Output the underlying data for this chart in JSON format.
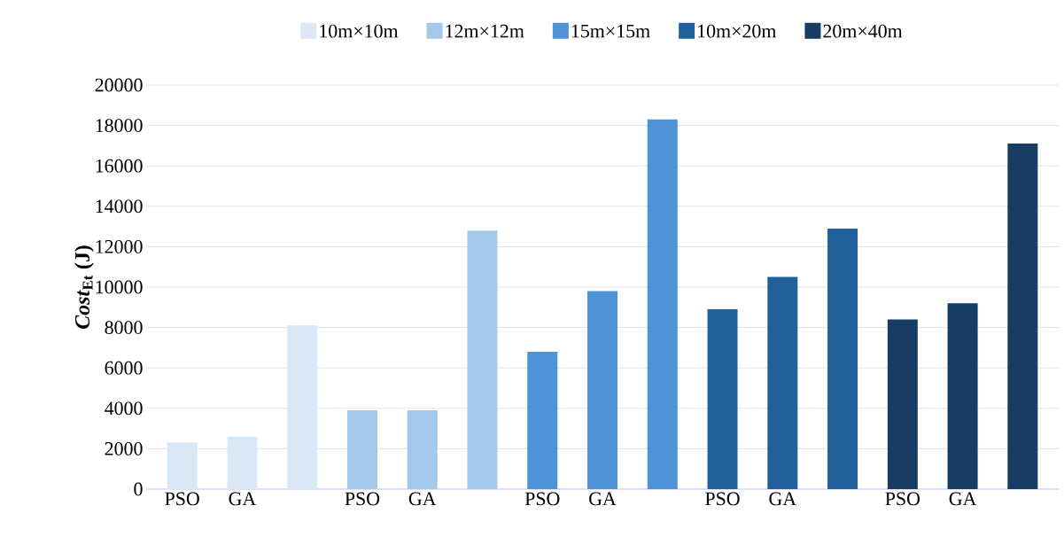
{
  "chart_data": {
    "type": "bar",
    "ylabel": "*Cost*$_{Et}$ (J)",
    "categories": [
      "PSO",
      "GA",
      null,
      "PSO",
      "GA",
      null,
      "PSO",
      "GA",
      null,
      "PSO",
      "GA",
      null,
      "PSO",
      "GA",
      null
    ],
    "series": [
      {
        "name": "10m×10m",
        "color": "#dae8f6",
        "values": [
          2300,
          2600,
          8100,
          null,
          null,
          null,
          null,
          null,
          null,
          null,
          null,
          null,
          null,
          null,
          null
        ]
      },
      {
        "name": "12m×12m",
        "color": "#a3c8ea",
        "values": [
          null,
          null,
          null,
          3900,
          3900,
          12800,
          null,
          null,
          null,
          null,
          null,
          null,
          null,
          null,
          null
        ]
      },
      {
        "name": "15m×15m",
        "color": "#4f94d9",
        "values": [
          null,
          null,
          null,
          null,
          null,
          null,
          6800,
          9800,
          18300,
          null,
          null,
          null,
          null,
          null,
          null
        ]
      },
      {
        "name": "10m×20m",
        "color": "#22609c",
        "values": [
          null,
          null,
          null,
          null,
          null,
          null,
          null,
          null,
          null,
          8900,
          10500,
          12900,
          null,
          null,
          null
        ]
      },
      {
        "name": "20m×40m",
        "color": "#173d64",
        "values": [
          null,
          null,
          null,
          null,
          null,
          null,
          null,
          null,
          null,
          null,
          null,
          null,
          8400,
          9200,
          17100
        ]
      }
    ],
    "ylim": [
      0,
      20000
    ],
    "yticks": [
      0,
      2000,
      4000,
      6000,
      8000,
      10000,
      12000,
      14000,
      16000,
      18000,
      20000
    ],
    "grid": "y",
    "legend": "top"
  }
}
